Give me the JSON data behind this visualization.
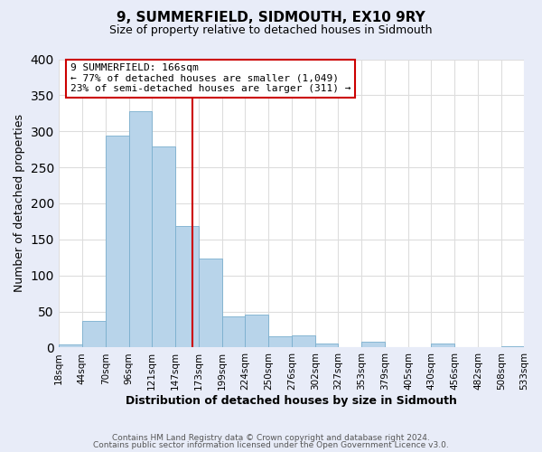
{
  "title": "9, SUMMERFIELD, SIDMOUTH, EX10 9RY",
  "subtitle": "Size of property relative to detached houses in Sidmouth",
  "xlabel": "Distribution of detached houses by size in Sidmouth",
  "ylabel": "Number of detached properties",
  "bar_left_edges": [
    18,
    44,
    70,
    96,
    121,
    147,
    173,
    199,
    224,
    250,
    276,
    302,
    327,
    353,
    379,
    405,
    430,
    456,
    482,
    508
  ],
  "bar_heights": [
    4,
    37,
    294,
    328,
    279,
    168,
    123,
    43,
    46,
    16,
    17,
    5,
    1,
    8,
    1,
    0,
    6,
    0,
    1,
    2
  ],
  "bar_widths": [
    26,
    26,
    26,
    25,
    26,
    26,
    26,
    25,
    26,
    26,
    26,
    25,
    26,
    26,
    26,
    25,
    26,
    26,
    26,
    25
  ],
  "tick_labels": [
    "18sqm",
    "44sqm",
    "70sqm",
    "96sqm",
    "121sqm",
    "147sqm",
    "173sqm",
    "199sqm",
    "224sqm",
    "250sqm",
    "276sqm",
    "302sqm",
    "327sqm",
    "353sqm",
    "379sqm",
    "405sqm",
    "430sqm",
    "456sqm",
    "482sqm",
    "508sqm",
    "533sqm"
  ],
  "tick_positions": [
    18,
    44,
    70,
    96,
    121,
    147,
    173,
    199,
    224,
    250,
    276,
    302,
    327,
    353,
    379,
    405,
    430,
    456,
    482,
    508,
    533
  ],
  "bar_color": "#b8d4ea",
  "bar_edge_color": "#7aafce",
  "vline_x": 166,
  "vline_color": "#cc0000",
  "ylim": [
    0,
    400
  ],
  "yticks": [
    0,
    50,
    100,
    150,
    200,
    250,
    300,
    350,
    400
  ],
  "annotation_title": "9 SUMMERFIELD: 166sqm",
  "annotation_line1": "← 77% of detached houses are smaller (1,049)",
  "annotation_line2": "23% of semi-detached houses are larger (311) →",
  "annotation_box_color": "#ffffff",
  "annotation_box_edge": "#cc0000",
  "footer_line1": "Contains HM Land Registry data © Crown copyright and database right 2024.",
  "footer_line2": "Contains public sector information licensed under the Open Government Licence v3.0.",
  "background_color": "#e8ecf8",
  "plot_bg_color": "#ffffff"
}
